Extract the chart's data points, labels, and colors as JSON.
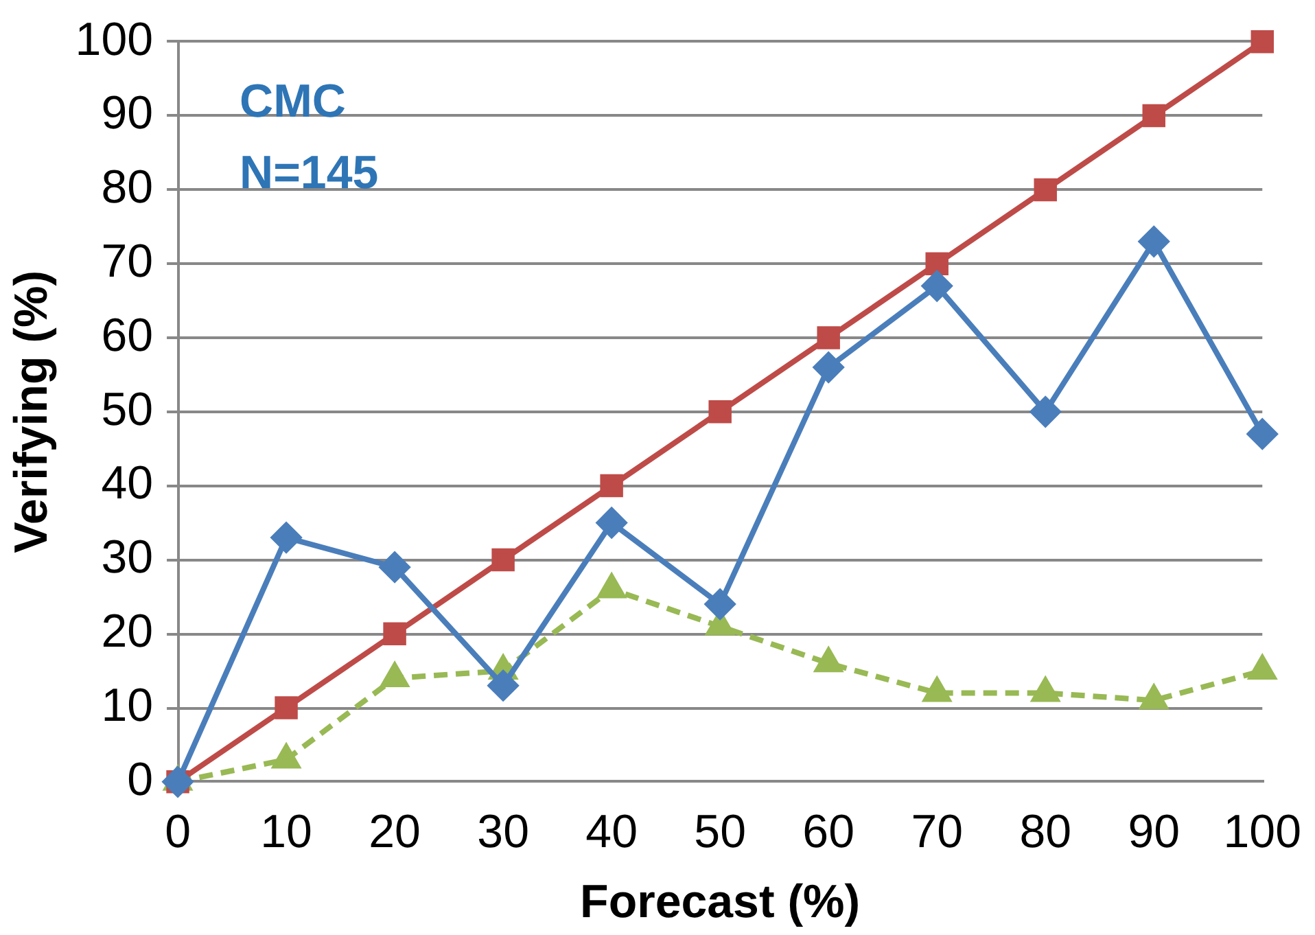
{
  "chart_data": {
    "type": "line",
    "xlabel": "Forecast (%)",
    "ylabel": "Verifying (%)",
    "annotations": [
      "CMC",
      "N=145"
    ],
    "x": [
      0,
      10,
      20,
      30,
      40,
      50,
      60,
      70,
      80,
      90,
      100
    ],
    "series": [
      {
        "color": "#4a7ebb",
        "values": [
          0,
          33,
          29,
          13,
          35,
          24,
          56,
          67,
          50,
          73,
          47
        ],
        "marker": "diamond",
        "line_style": "solid"
      },
      {
        "color": "#be4b48",
        "values": [
          0,
          10,
          20,
          30,
          40,
          50,
          60,
          70,
          80,
          90,
          100
        ],
        "marker": "square",
        "line_style": "solid"
      },
      {
        "color": "#98b954",
        "values": [
          0,
          3,
          14,
          15,
          26,
          21,
          16,
          12,
          12,
          11,
          15
        ],
        "marker": "triangle",
        "line_style": "dashed"
      }
    ],
    "xlim": [
      0,
      100
    ],
    "xticks": [
      0,
      10,
      20,
      30,
      40,
      50,
      60,
      70,
      80,
      90,
      100
    ],
    "ylim": [
      0,
      100
    ],
    "yticks": [
      0,
      10,
      20,
      30,
      40,
      50,
      60,
      70,
      80,
      90,
      100
    ],
    "grid": "y",
    "legend": false
  }
}
